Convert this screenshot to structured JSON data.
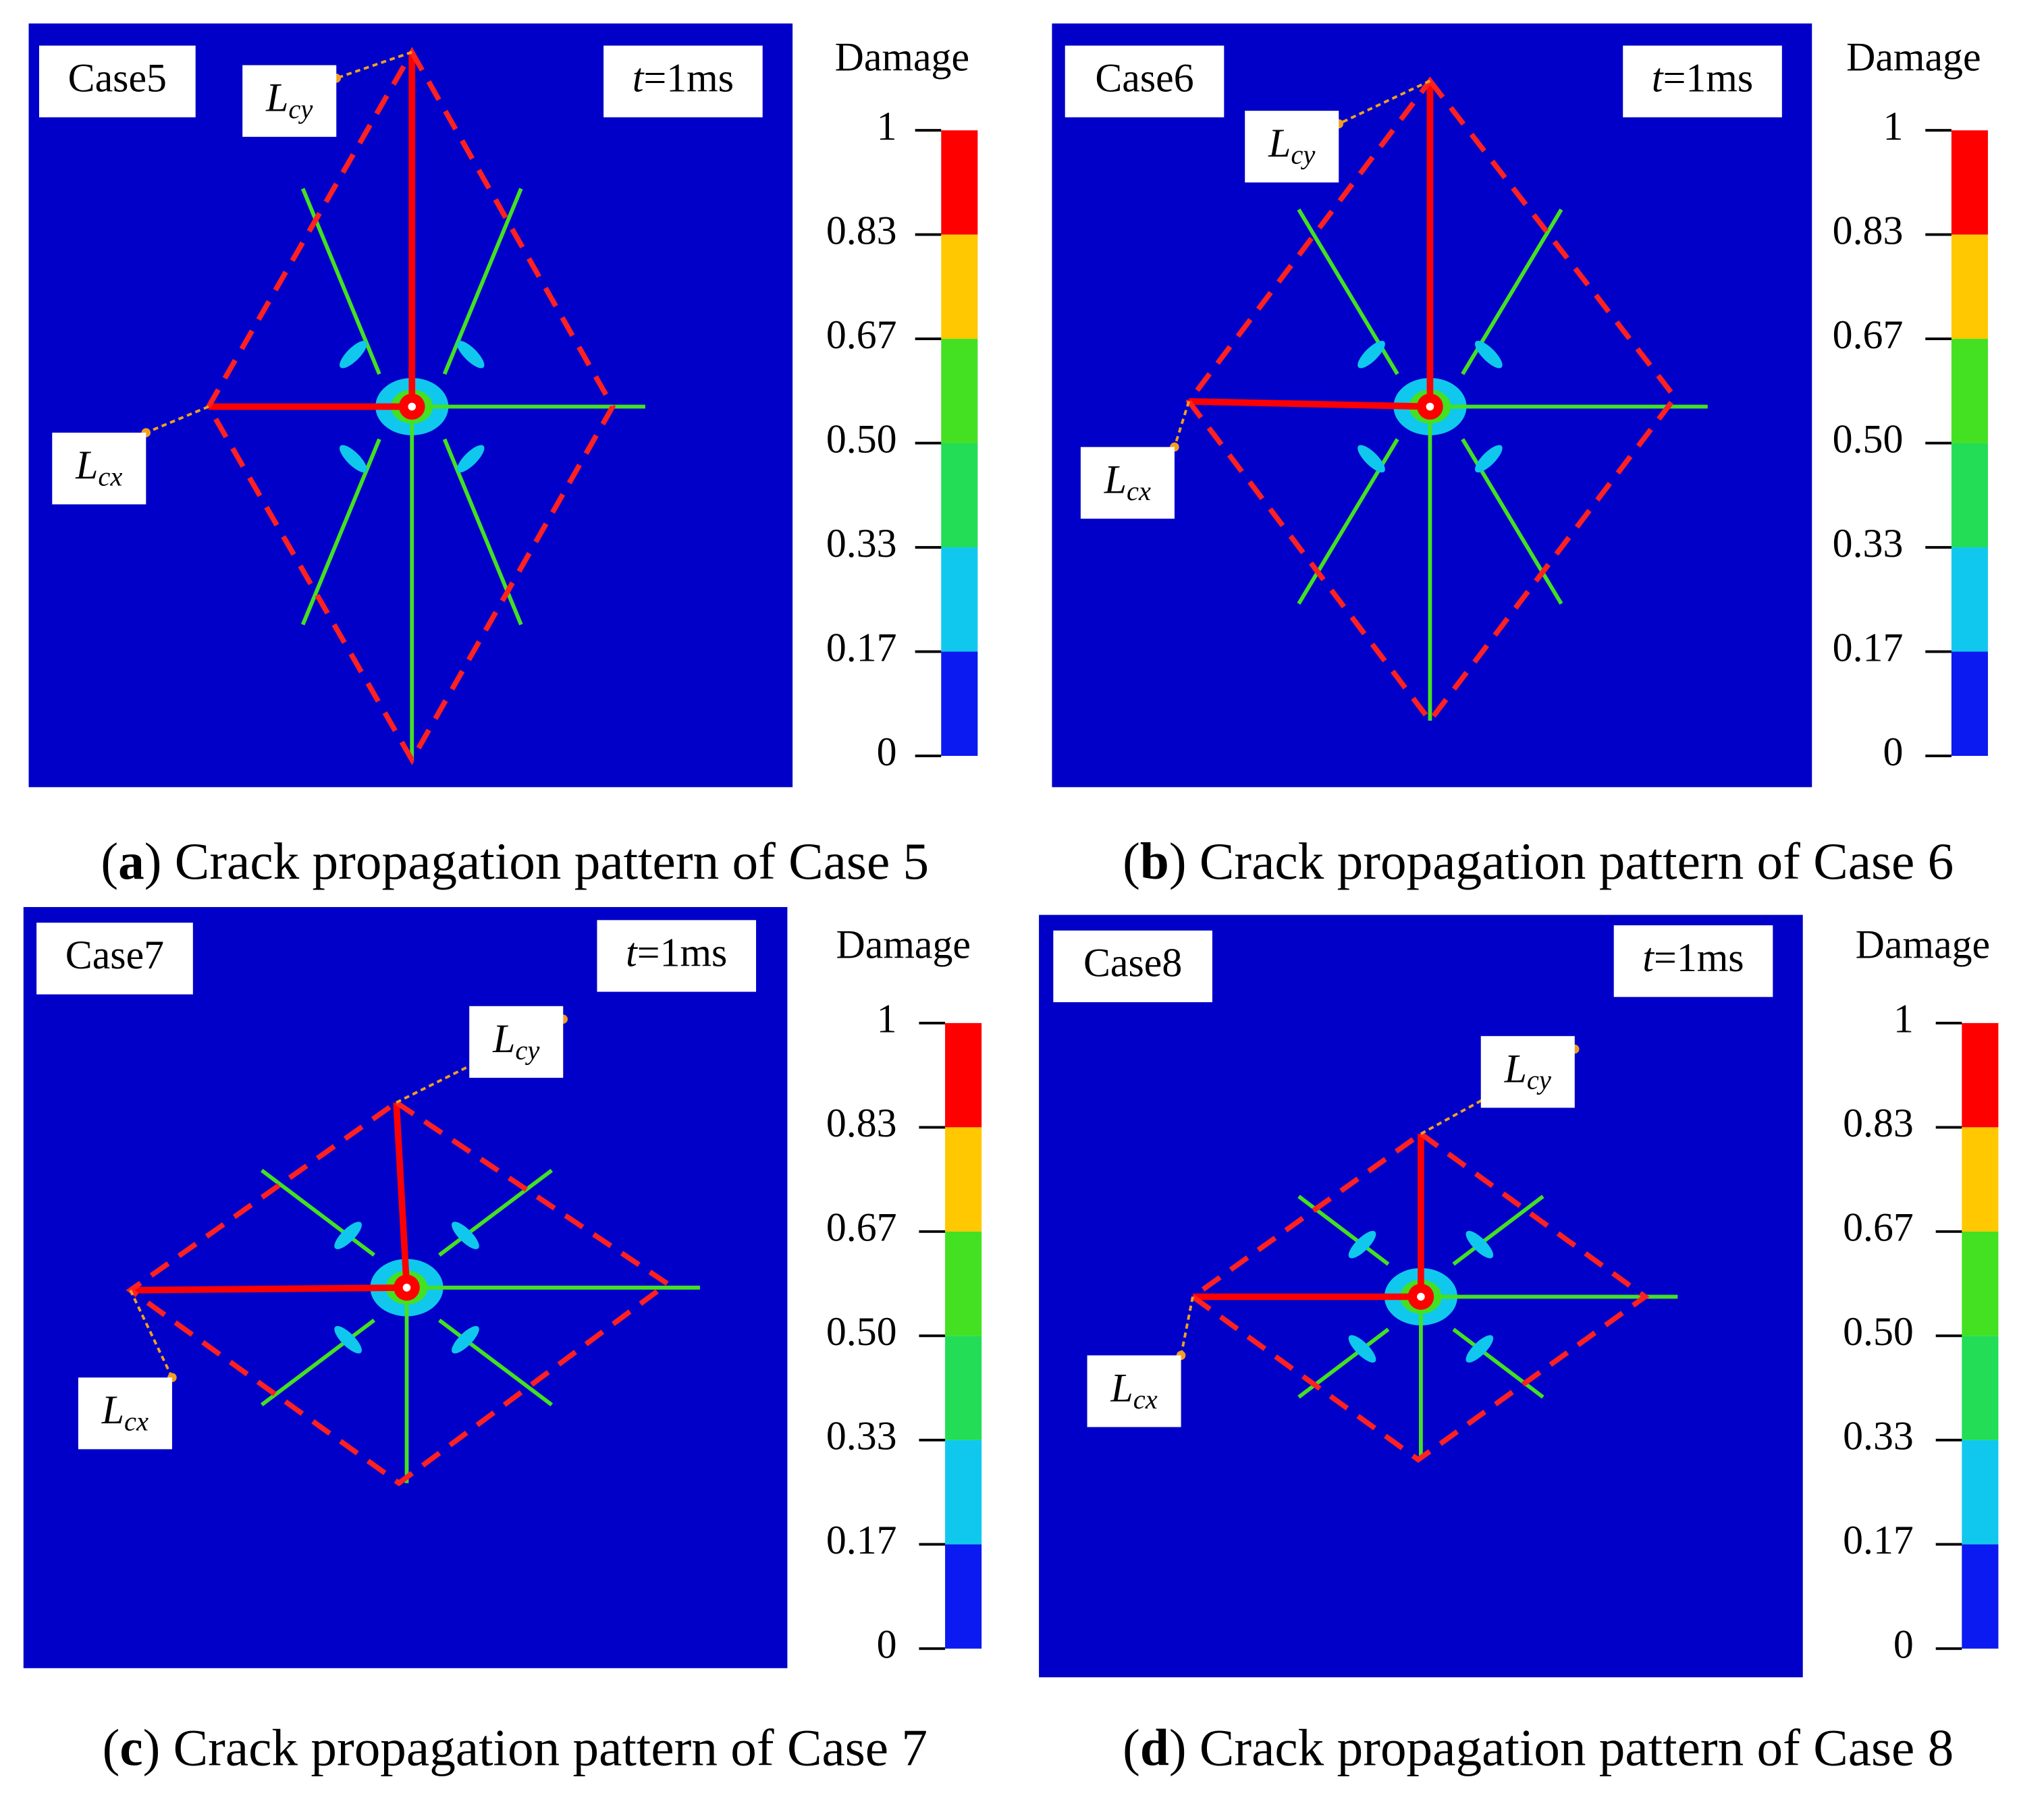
{
  "colorbar": {
    "title": "Damage",
    "ticks": [
      "1",
      "0.83",
      "0.67",
      "0.50",
      "0.33",
      "0.17",
      "0"
    ],
    "colors": [
      "#ff0000",
      "#ffc800",
      "#44e022",
      "#22dd55",
      "#10c8ee",
      "#0a1af0"
    ]
  },
  "background_color": "#0000c8",
  "panels": [
    {
      "case_label": "Case5",
      "time": {
        "var": "t",
        "text": "=1ms"
      },
      "lcy": {
        "L": "L",
        "sub": "cy"
      },
      "lcx": {
        "L": "L",
        "sub": "cx"
      },
      "caption": {
        "prefix": "(",
        "letter": "a",
        "text": ") Crack propagation pattern of Case 5"
      }
    },
    {
      "case_label": "Case6",
      "time": {
        "var": "t",
        "text": "=1ms"
      },
      "lcy": {
        "L": "L",
        "sub": "cy"
      },
      "lcx": {
        "L": "L",
        "sub": "cx"
      },
      "caption": {
        "prefix": "(",
        "letter": "b",
        "text": ") Crack propagation pattern of Case 6"
      }
    },
    {
      "case_label": "Case7",
      "time": {
        "var": "t",
        "text": "=1ms"
      },
      "lcy": {
        "L": "L",
        "sub": "cy"
      },
      "lcx": {
        "L": "L",
        "sub": "cx"
      },
      "caption": {
        "prefix": "(",
        "letter": "c",
        "text": ") Crack propagation pattern of Case 7"
      }
    },
    {
      "case_label": "Case8",
      "time": {
        "var": "t",
        "text": "=1ms"
      },
      "lcy": {
        "L": "L",
        "sub": "cy"
      },
      "lcx": {
        "L": "L",
        "sub": "cx"
      },
      "caption": {
        "prefix": "(",
        "letter": "d",
        "text": ") Crack propagation pattern of Case 8"
      }
    }
  ]
}
